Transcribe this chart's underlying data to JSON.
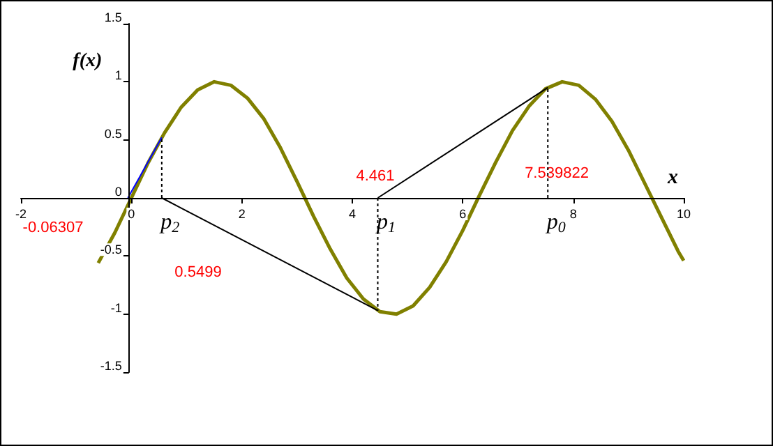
{
  "chart_data": {
    "type": "line",
    "xlabel": "x",
    "ylabel": "f(x)",
    "xlim": [
      -2,
      10
    ],
    "xticks": [
      -2,
      0,
      2,
      4,
      6,
      8,
      10
    ],
    "ylim": [
      -1.5,
      1.5
    ],
    "yticks": [
      -1.5,
      -1,
      -0.5,
      0,
      0.5,
      1,
      1.5
    ],
    "marker": "none",
    "series": [
      {
        "color": "#808000",
        "x": [
          -0.6,
          -0.3,
          0,
          0.3,
          0.6,
          0.9,
          1.2,
          1.5,
          1.8,
          2.1,
          2.4,
          2.7,
          3.0,
          3.3,
          3.6,
          3.9,
          4.2,
          4.5,
          4.8,
          5.1,
          5.4,
          5.7,
          6.0,
          6.3,
          6.6,
          6.9,
          7.2,
          7.5,
          7.8,
          8.1,
          8.4,
          8.7,
          9.0,
          9.3,
          9.6,
          9.9,
          10
        ],
        "values": [
          -0.56,
          -0.3,
          0,
          0.3,
          0.56,
          0.78,
          0.93,
          1.0,
          0.97,
          0.86,
          0.68,
          0.43,
          0.14,
          -0.16,
          -0.44,
          -0.69,
          -0.87,
          -0.98,
          -1.0,
          -0.93,
          -0.77,
          -0.55,
          -0.28,
          0.02,
          0.31,
          0.58,
          0.79,
          0.94,
          1.0,
          0.97,
          0.85,
          0.66,
          0.41,
          0.12,
          -0.17,
          -0.46,
          -0.54
        ]
      },
      {
        "color": "#000000",
        "x": [
          7.539822,
          4.461
        ],
        "values": [
          0.95,
          0
        ],
        "line_style": "solid"
      },
      {
        "color": "#000000",
        "x": [
          4.461,
          0.5499
        ],
        "values": [
          -0.97,
          0
        ],
        "line_style": "solid"
      },
      {
        "color": "#0000ff",
        "x": [
          0.5499,
          -0.06307
        ],
        "values": [
          0.52,
          0
        ],
        "line_style": "solid"
      },
      {
        "color": "#000000",
        "x": [
          7.539822,
          7.539822
        ],
        "values": [
          0,
          0.95
        ],
        "line_style": "dotted"
      },
      {
        "color": "#000000",
        "x": [
          4.461,
          4.461
        ],
        "values": [
          0,
          -0.97
        ],
        "line_style": "dotted"
      },
      {
        "color": "#000000",
        "x": [
          0.5499,
          0.5499
        ],
        "values": [
          0,
          0.52
        ],
        "line_style": "dotted"
      }
    ],
    "annotations": [
      "4.461",
      "7.539822",
      "0.5499",
      "-0.06307",
      {
        "text": "p$_{2}$",
        "x": 0.5499,
        "y": 0
      },
      {
        "text": "p$_{1}$",
        "x": 4.461,
        "y": 0
      },
      {
        "text": "p$_{0}$",
        "x": 7.539822,
        "y": 0
      }
    ]
  }
}
